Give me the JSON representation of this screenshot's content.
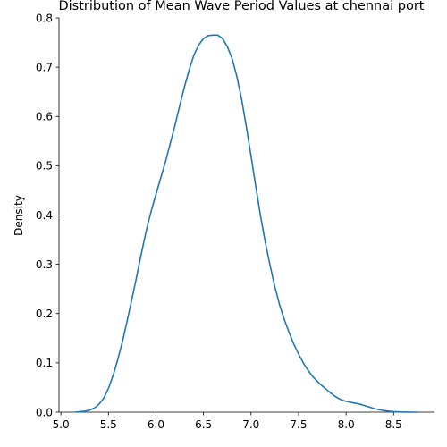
{
  "chart_data": {
    "type": "line",
    "title": "Distribution of Mean Wave Period Values at chennai port",
    "xlabel": "",
    "ylabel": "Density",
    "xlim": [
      4.98,
      8.93
    ],
    "ylim": [
      0,
      0.8
    ],
    "x_ticks": [
      "5.0",
      "5.5",
      "6.0",
      "6.5",
      "7.0",
      "7.5",
      "8.0",
      "8.5"
    ],
    "y_ticks": [
      "0.0",
      "0.1",
      "0.2",
      "0.3",
      "0.4",
      "0.5",
      "0.6",
      "0.7",
      "0.8"
    ],
    "grid": false,
    "line_color": "#1f77b4",
    "series": [
      {
        "x": [
          5.15,
          5.2,
          5.25,
          5.3,
          5.35,
          5.4,
          5.45,
          5.5,
          5.55,
          5.6,
          5.65,
          5.7,
          5.75,
          5.8,
          5.85,
          5.9,
          5.95,
          6.0,
          6.05,
          6.1,
          6.15,
          6.2,
          6.25,
          6.3,
          6.35,
          6.4,
          6.45,
          6.5,
          6.55,
          6.6,
          6.65,
          6.7,
          6.75,
          6.8,
          6.85,
          6.9,
          6.95,
          7.0,
          7.05,
          7.1,
          7.15,
          7.2,
          7.25,
          7.3,
          7.35,
          7.4,
          7.45,
          7.5,
          7.55,
          7.6,
          7.65,
          7.7,
          7.75,
          7.8,
          7.85,
          7.9,
          7.95,
          8.0,
          8.05,
          8.1,
          8.15,
          8.2,
          8.25,
          8.3,
          8.35,
          8.4,
          8.45,
          8.5,
          8.55,
          8.6,
          8.65,
          8.7,
          8.75
        ],
        "y": [
          0.0,
          0.001,
          0.002,
          0.004,
          0.008,
          0.016,
          0.028,
          0.048,
          0.075,
          0.108,
          0.145,
          0.188,
          0.232,
          0.278,
          0.325,
          0.37,
          0.408,
          0.442,
          0.475,
          0.508,
          0.545,
          0.582,
          0.622,
          0.66,
          0.695,
          0.725,
          0.745,
          0.758,
          0.764,
          0.765,
          0.765,
          0.758,
          0.742,
          0.718,
          0.682,
          0.636,
          0.58,
          0.52,
          0.458,
          0.398,
          0.345,
          0.298,
          0.255,
          0.218,
          0.188,
          0.162,
          0.138,
          0.118,
          0.1,
          0.085,
          0.072,
          0.062,
          0.053,
          0.045,
          0.037,
          0.03,
          0.025,
          0.022,
          0.02,
          0.018,
          0.016,
          0.013,
          0.01,
          0.007,
          0.005,
          0.003,
          0.002,
          0.001,
          0.0005,
          0.0002,
          0.0001,
          0.0,
          0.0
        ]
      }
    ]
  }
}
